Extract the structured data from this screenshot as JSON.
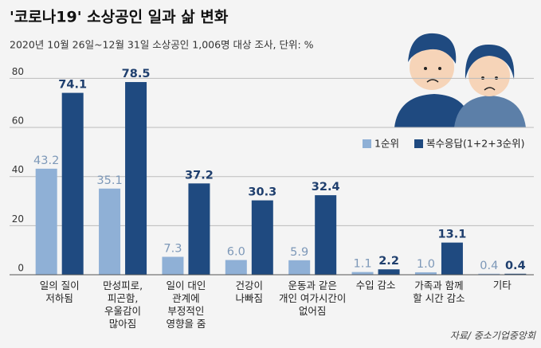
{
  "chart_data": {
    "type": "bar",
    "title": "'코로나19' 소상공인 일과 삶 변화",
    "subtitle": "2020년 10월 26일~12월 31일 소상공인 1,006명 대상 조사, 단위: %",
    "source": "자료/ 중소기업중앙회",
    "categories": [
      "일의 질이\n저하됨",
      "만성피로,\n피곤함,\n우울감이\n많아짐",
      "일이 대인\n관계에\n부정적인\n영향을 줌",
      "건강이\n나빠짐",
      "운동과 같은\n개인 여가시간이\n없어짐",
      "수입 감소",
      "가족과 함께\n할 시간 감소",
      "기타"
    ],
    "series": [
      {
        "name": "1순위",
        "color": "#8fb0d6",
        "values": [
          43.2,
          35.1,
          7.3,
          6.0,
          5.9,
          1.1,
          1.0,
          0.4
        ],
        "value_labels": [
          "43.2",
          "35.1",
          "7.3",
          "6.0",
          "5.9",
          "1.1",
          "1.0",
          "0.4"
        ]
      },
      {
        "name": "복수응답(1+2+3순위)",
        "color": "#1f4a80",
        "values": [
          74.1,
          78.5,
          37.2,
          30.3,
          32.4,
          2.2,
          13.1,
          0.4
        ]
      }
    ],
    "ylim": [
      0,
      85
    ],
    "yticks": [
      0,
      20,
      40,
      60,
      80
    ],
    "grid": true
  }
}
